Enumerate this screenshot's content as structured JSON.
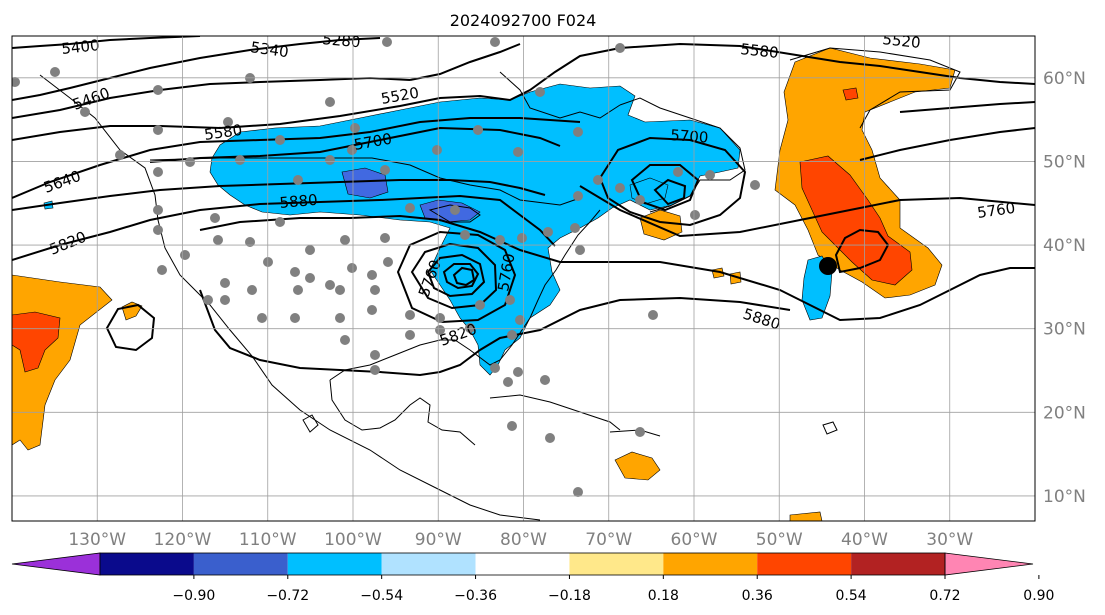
{
  "title": "2024092700 F024",
  "map": {
    "lon_range": [
      -140,
      -20
    ],
    "lat_range": [
      7,
      65
    ],
    "lon_ticks": [
      -130,
      -120,
      -110,
      -100,
      -90,
      -80,
      -70,
      -60,
      -50,
      -40,
      -30
    ],
    "lon_labels": [
      "130°W",
      "120°W",
      "110°W",
      "100°W",
      "90°W",
      "80°W",
      "70°W",
      "60°W",
      "50°W",
      "40°W",
      "30°W"
    ],
    "lat_ticks": [
      10,
      20,
      30,
      40,
      50,
      60
    ],
    "lat_labels": [
      "10°N",
      "20°N",
      "30°N",
      "40°N",
      "50°N",
      "60°N"
    ],
    "contour_labels": [
      "5400",
      "5340",
      "5280",
      "5580",
      "5520",
      "5460",
      "5520",
      "5580",
      "5700",
      "5700",
      "5640",
      "5880",
      "5820",
      "5760",
      "5760",
      "5760",
      "5820",
      "5880"
    ],
    "marker": "black-dot-marker"
  },
  "colorbar": {
    "ticks": [
      "−0.90",
      "−0.72",
      "−0.54",
      "−0.36",
      "−0.18",
      "0.18",
      "0.36",
      "0.54",
      "0.72",
      "0.90"
    ],
    "colors": [
      "#9b30d9",
      "#0a0a8c",
      "#3a5fcd",
      "#00bfff",
      "#b0e2ff",
      "#ffffff",
      "#ffe88a",
      "#ffa500",
      "#ff4500",
      "#b22222",
      "#ff85b3"
    ]
  },
  "palette": {
    "neg_light": "#00bfff",
    "neg_dark": "#4169e1",
    "pos_light": "#ffa500",
    "pos_dark": "#ff4500",
    "dots": "#808080",
    "axis_text": "#808080"
  }
}
